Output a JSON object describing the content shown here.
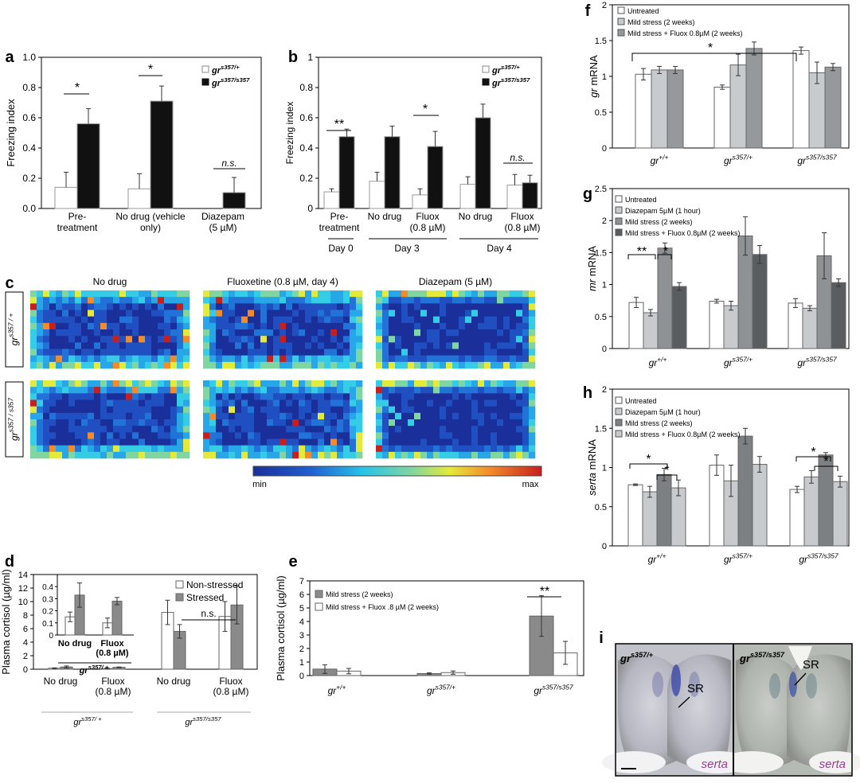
{
  "figure": {
    "panel_letters": [
      "a",
      "b",
      "c",
      "d",
      "e",
      "f",
      "g",
      "h",
      "i"
    ],
    "genotype_base": "gr"
  },
  "chart_data": [
    {
      "id": "a",
      "type": "bar",
      "ylabel": "Freezing index",
      "ylim": [
        0,
        1
      ],
      "yticks": [
        "0.0",
        "0.2",
        "0.4",
        "0.6",
        "0.8",
        "1.0"
      ],
      "categories": [
        "Pre-\ntreatment",
        "No drug (vehicle\nonly)",
        "Diazepam\n(5 µM)"
      ],
      "legend": [
        {
          "label": "gr",
          "sup": "s357/+"
        },
        {
          "label": "gr",
          "sup": "s357/s357"
        }
      ],
      "series": [
        {
          "name": "gr s357/+",
          "fill": "#ffffff",
          "values": [
            0.14,
            0.13,
            0.0
          ],
          "errors": [
            0.1,
            0.1,
            0.0
          ]
        },
        {
          "name": "gr s357/s357",
          "fill": "#111111",
          "values": [
            0.56,
            0.71,
            0.105
          ],
          "errors": [
            0.1,
            0.1,
            0.1
          ]
        }
      ],
      "significance": [
        {
          "label": "*"
        },
        {
          "label": "*"
        },
        {
          "label": "n.s."
        }
      ]
    },
    {
      "id": "b",
      "type": "bar",
      "ylabel": "Freezing index",
      "ylim": [
        0,
        1
      ],
      "yticks": [
        "0",
        "0.2",
        "0.4",
        "0.6",
        "0.8",
        "1"
      ],
      "categories": [
        "Pre-\ntreatment",
        "No drug",
        "Fluox\n(0.8 µM)",
        "No drug",
        "Fluox\n(0.8 µM)"
      ],
      "groups": [
        "Day 0",
        "Day 3",
        "Day 4"
      ],
      "legend": [
        {
          "label": "gr",
          "sup": "s357/+"
        },
        {
          "label": "gr",
          "sup": "s357/s357"
        }
      ],
      "series": [
        {
          "name": "gr s357/+",
          "fill": "#ffffff",
          "values": [
            0.11,
            0.18,
            0.09,
            0.16,
            0.155
          ],
          "errors": [
            0.02,
            0.06,
            0.04,
            0.05,
            0.07
          ]
        },
        {
          "name": "gr s357/s357",
          "fill": "#111111",
          "values": [
            0.475,
            0.475,
            0.41,
            0.6,
            0.17
          ],
          "errors": [
            0.05,
            0.07,
            0.1,
            0.09,
            0.05
          ]
        }
      ],
      "significance": [
        {
          "label": "**"
        },
        {
          "label": "*"
        },
        {
          "label": "n.s."
        }
      ]
    },
    {
      "id": "c",
      "type": "heatmap",
      "columns": [
        "No drug",
        "Fluoxetine (0.8 µM, day 4)",
        "Diazepam (5 µM)"
      ],
      "rows": [
        {
          "label": "gr",
          "sup": "s357 / +"
        },
        {
          "label": "gr",
          "sup": "s357 / s357"
        }
      ],
      "colorbar": {
        "min": "min",
        "max": "max"
      }
    },
    {
      "id": "d",
      "type": "bar",
      "ylabel": "Plasma cortisol (µg/ml)",
      "ylim": [
        0,
        14
      ],
      "yticks": [
        "0",
        "2",
        "4",
        "6",
        "8",
        "10",
        "12",
        "14"
      ],
      "categories": [
        "No drug",
        "Fluox\n(0.8 µM)",
        "No drug",
        "Fluox\n(0.8 µM)"
      ],
      "groups": [
        {
          "label": "gr",
          "sup": "s357/ +"
        },
        {
          "label": "gr",
          "sup": "s357/s357"
        }
      ],
      "legend": [
        "Non-stressed",
        "Stressed"
      ],
      "series": [
        {
          "name": "Non-stressed",
          "fill": "#ffffff",
          "values": [
            0.15,
            0.1,
            8.4,
            7.8
          ],
          "errors": [
            0.05,
            0.05,
            1.8,
            2.2
          ]
        },
        {
          "name": "Stressed",
          "fill": "#8a8a8a",
          "values": [
            0.33,
            0.28,
            5.6,
            9.5
          ],
          "errors": [
            0.15,
            0.05,
            1.0,
            2.8
          ]
        }
      ],
      "significance": [
        {
          "label": "n.s."
        }
      ],
      "inset": {
        "ylim": [
          0,
          0.5
        ],
        "yticks": [
          "0",
          "0.1",
          "0.2",
          "0.3",
          "0.4"
        ],
        "categories": [
          "No drug",
          "Fluox\n(0.8 µM)"
        ],
        "group": {
          "label": "gr",
          "sup": "s357/ +"
        },
        "series": [
          {
            "name": "Non-stressed",
            "fill": "#ffffff",
            "values": [
              0.15,
              0.1
            ],
            "errors": [
              0.04,
              0.04
            ]
          },
          {
            "name": "Stressed",
            "fill": "#8a8a8a",
            "values": [
              0.33,
              0.28
            ],
            "errors": [
              0.1,
              0.03
            ]
          }
        ]
      }
    },
    {
      "id": "e",
      "type": "bar",
      "ylabel": "Plasma cortisol (µg/ml)",
      "ylim": [
        0,
        7
      ],
      "yticks": [
        "0",
        "1",
        "2",
        "3",
        "4",
        "5",
        "6",
        "7"
      ],
      "categories": [
        {
          "label": "gr",
          "sup": "+/+"
        },
        {
          "label": "gr",
          "sup": "s357/+"
        },
        {
          "label": "gr",
          "sup": "s357/s357"
        }
      ],
      "legend": [
        "Mild stress (2 weeks)",
        "Mild stress + Fluox .8 µM (2 weeks)"
      ],
      "series": [
        {
          "name": "Mild stress (2 weeks)",
          "fill": "#8a8a8a",
          "values": [
            0.48,
            0.15,
            4.4
          ],
          "errors": [
            0.32,
            0.05,
            1.5
          ]
        },
        {
          "name": "Mild stress + Fluox .8 µM (2 weeks)",
          "fill": "#ffffff",
          "values": [
            0.33,
            0.22,
            1.68
          ],
          "errors": [
            0.2,
            0.12,
            0.85
          ]
        }
      ],
      "significance": [
        {
          "label": "**"
        }
      ]
    },
    {
      "id": "f",
      "type": "bar",
      "ylabel": "gr mRNA",
      "ylabel_prefix": "gr",
      "ylabel_suffix": " mRNA",
      "ylim": [
        0,
        2
      ],
      "yticks": [
        "0",
        "0.5",
        "1",
        "1.5",
        "2"
      ],
      "categories": [
        {
          "label": "gr",
          "sup": "+/+"
        },
        {
          "label": "gr",
          "sup": "s357/+"
        },
        {
          "label": "gr",
          "sup": "s357/s357"
        }
      ],
      "legend": [
        "Untreated",
        "Mild stress (2 weeks)",
        "Mild stress + Fluox 0.8µM (2 weeks)"
      ],
      "series": [
        {
          "name": "Untreated",
          "fill": "#ffffff",
          "values": [
            1.03,
            0.85,
            1.36
          ],
          "errors": [
            0.08,
            0.03,
            0.05
          ]
        },
        {
          "name": "Mild stress (2 weeks)",
          "fill": "#c8cbcd",
          "values": [
            1.09,
            1.16,
            1.05
          ],
          "errors": [
            0.05,
            0.15,
            0.15
          ]
        },
        {
          "name": "Mild stress + Fluox 0.8µM (2 weeks)",
          "fill": "#96999c",
          "values": [
            1.09,
            1.39,
            1.13
          ],
          "errors": [
            0.05,
            0.09,
            0.05
          ]
        }
      ],
      "significance": [
        {
          "label": "*"
        }
      ]
    },
    {
      "id": "g",
      "type": "bar",
      "ylabel": "mr mRNA",
      "ylabel_prefix": "mr",
      "ylabel_suffix": " mRNA",
      "ylim": [
        0,
        2.5
      ],
      "yticks": [
        "0",
        "0.5",
        "1",
        "1.5",
        "2",
        "2.5"
      ],
      "categories": [
        {
          "label": "gr",
          "sup": "+/+"
        },
        {
          "label": "gr",
          "sup": "s357/+"
        },
        {
          "label": "gr",
          "sup": "s357/s357"
        }
      ],
      "legend": [
        "Untreated",
        "Diazepam 5µM (1 hour)",
        "Mild stress (2 weeks)",
        "Mild stress + Fluox 0.8µM (2 weeks)"
      ],
      "series": [
        {
          "name": "Untreated",
          "fill": "#ffffff",
          "values": [
            0.72,
            0.74,
            0.71
          ],
          "errors": [
            0.08,
            0.03,
            0.07
          ]
        },
        {
          "name": "Diazepam 5µM (1 hour)",
          "fill": "#c8cbcd",
          "values": [
            0.56,
            0.67,
            0.63
          ],
          "errors": [
            0.05,
            0.07,
            0.04
          ]
        },
        {
          "name": "Mild stress (2 weeks)",
          "fill": "#8f9295",
          "values": [
            1.57,
            1.76,
            1.45
          ],
          "errors": [
            0.08,
            0.3,
            0.36
          ]
        },
        {
          "name": "Mild stress + Fluox 0.8µM (2 weeks)",
          "fill": "#5a5d60",
          "values": [
            0.97,
            1.47,
            1.03
          ],
          "errors": [
            0.06,
            0.14,
            0.06
          ]
        }
      ],
      "significance": [
        {
          "label": "**"
        },
        {
          "label": "*"
        }
      ]
    },
    {
      "id": "h",
      "type": "bar",
      "ylabel": "serta mRNA",
      "ylabel_prefix": "serta",
      "ylabel_suffix": " mRNA",
      "ylim": [
        0,
        2
      ],
      "yticks": [
        "0",
        "0.5",
        "1",
        "1.5",
        "2"
      ],
      "categories": [
        {
          "label": "gr",
          "sup": "+/+"
        },
        {
          "label": "gr",
          "sup": "s357/+"
        },
        {
          "label": "gr",
          "sup": "s357/s357"
        }
      ],
      "legend": [
        "Untreated",
        "Diazepam 5µM (1 hour)",
        "Mild stress (2 weeks)",
        "Mild stress + Fluox 0.8µM (2 weeks)"
      ],
      "series": [
        {
          "name": "Untreated",
          "fill": "#ffffff",
          "values": [
            0.78,
            1.03,
            0.72
          ],
          "errors": [
            0.01,
            0.13,
            0.04
          ]
        },
        {
          "name": "Diazepam 5µM (1 hour)",
          "fill": "#c8cbcd",
          "values": [
            0.69,
            0.83,
            0.88
          ],
          "errors": [
            0.07,
            0.2,
            0.08
          ]
        },
        {
          "name": "Mild stress (2 weeks)",
          "fill": "#7d8083",
          "values": [
            0.91,
            1.4,
            1.16
          ],
          "errors": [
            0.08,
            0.1,
            0.03
          ]
        },
        {
          "name": "Mild stress + Fluox 0.8µM (2 weeks)",
          "fill": "#c8cbcd",
          "values": [
            0.74,
            1.04,
            0.82
          ],
          "errors": [
            0.1,
            0.1,
            0.07
          ]
        }
      ],
      "significance": [
        {
          "label": "*"
        },
        {
          "label": "*"
        },
        {
          "label": "*"
        },
        {
          "label": "*"
        }
      ]
    }
  ],
  "panel_i": {
    "left_genotype": {
      "label": "gr",
      "sup": "s357/+"
    },
    "right_genotype": {
      "label": "gr",
      "sup": "s357/s357"
    },
    "region_label": "SR",
    "probe_label": "serta"
  }
}
